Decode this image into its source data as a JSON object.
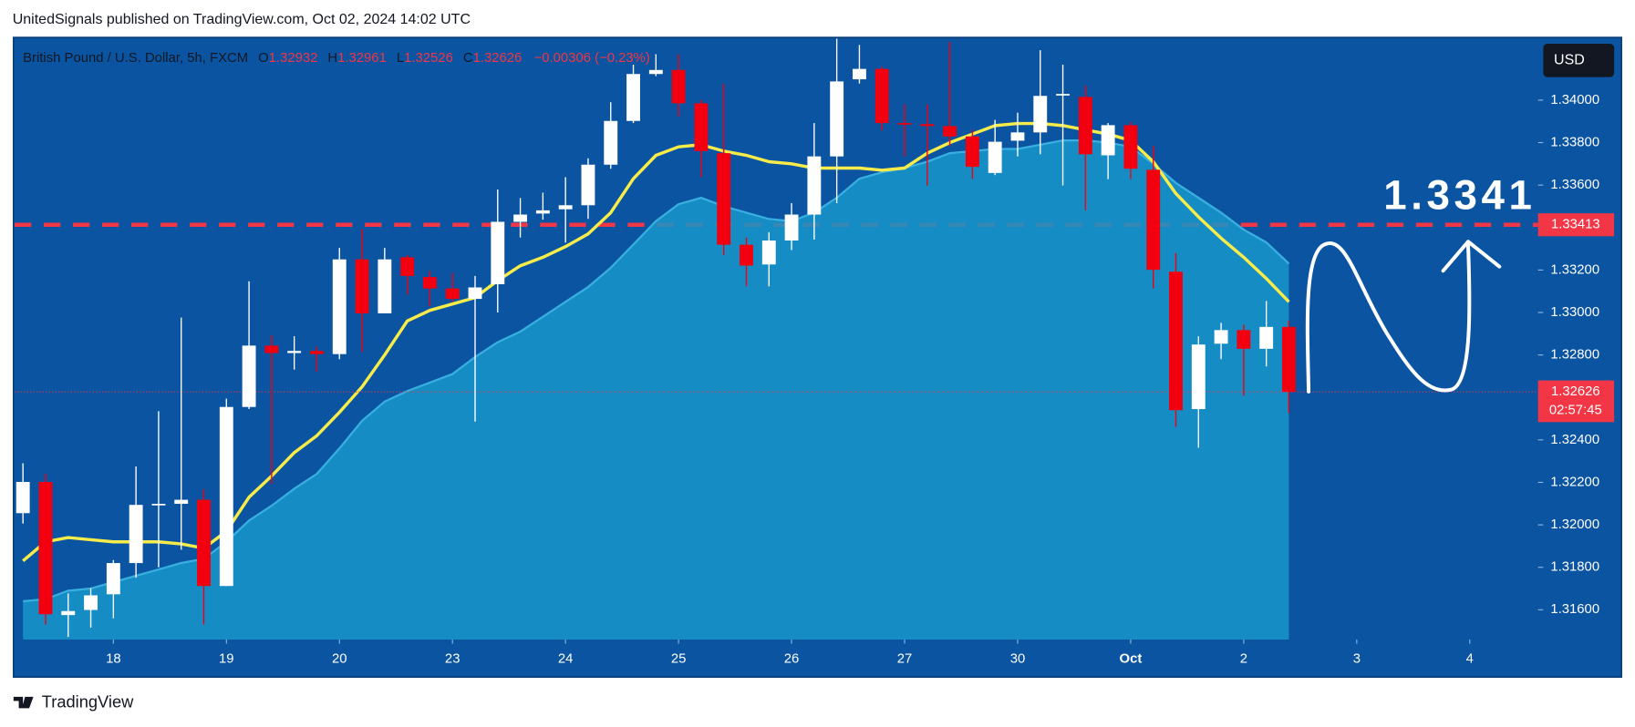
{
  "publish_text": "UnitedSignals published on TradingView.com, Oct 02, 2024 14:02 UTC",
  "footer": "TradingView",
  "chart_data": {
    "type": "candlestick",
    "title": "British Pound / U.S. Dollar, 5h, FXCM",
    "ohlc_labels": [
      "O",
      "H",
      "L",
      "C"
    ],
    "change": "−0.00306 (−0.23%)",
    "currency": "USD",
    "countdown": "02:57:45",
    "annotation": "1.3341",
    "up_color": "#ffffff",
    "down_color": "#f2000f",
    "open": [
      1.32055,
      1.32202,
      1.31575,
      1.31599,
      1.31673,
      1.3182,
      1.32094,
      1.32099,
      1.32118,
      1.31712,
      1.32555,
      1.32844,
      1.32809,
      1.32819,
      1.32804,
      1.3325,
      1.32996,
      1.3326,
      1.33167,
      1.33113,
      1.33064,
      1.33133,
      1.33427,
      1.33466,
      1.33486,
      1.33505,
      1.33696,
      1.33902,
      1.34123,
      1.34142,
      1.33985,
      1.3375,
      1.33319,
      1.33226,
      1.33339,
      1.33461,
      1.33735,
      1.34098,
      1.34147,
      1.33892,
      1.33887,
      1.33878,
      1.33829,
      1.33657,
      1.33809,
      1.33848,
      1.34025,
      1.34015,
      1.3374,
      1.33882,
      1.33672,
      1.33192,
      1.32545,
      1.32853,
      1.32917,
      1.32829,
      1.32932
    ],
    "high": [
      1.3229,
      1.32241,
      1.31677,
      1.31702,
      1.31834,
      1.32275,
      1.32535,
      1.32976,
      1.32167,
      1.32594,
      1.33147,
      1.32893,
      1.32888,
      1.32839,
      1.33304,
      1.33392,
      1.33304,
      1.3327,
      1.33196,
      1.33187,
      1.33172,
      1.33579,
      1.33539,
      1.33564,
      1.33637,
      1.33726,
      1.3399,
      1.34167,
      1.34216,
      1.34216,
      1.34,
      1.34078,
      1.33353,
      1.33378,
      1.33515,
      1.33892,
      1.34289,
      1.3426,
      1.34157,
      1.3398,
      1.3398,
      1.34274,
      1.33858,
      1.33907,
      1.33941,
      1.34235,
      1.34167,
      1.34069,
      1.33892,
      1.33897,
      1.33784,
      1.3328,
      1.32888,
      1.32951,
      1.32942,
      1.33054,
      1.32961
    ],
    "low": [
      1.32006,
      1.3153,
      1.31472,
      1.31516,
      1.3156,
      1.31751,
      1.318,
      1.31883,
      1.3153,
      1.31712,
      1.32545,
      1.32192,
      1.32731,
      1.32721,
      1.3278,
      1.32814,
      1.32996,
      1.33084,
      1.3303,
      1.33049,
      1.32486,
      1.33,
      1.33353,
      1.33437,
      1.33329,
      1.33441,
      1.33677,
      1.33892,
      1.34113,
      1.33922,
      1.33637,
      1.3327,
      1.33123,
      1.33123,
      1.33294,
      1.33343,
      1.33515,
      1.34078,
      1.33858,
      1.33735,
      1.33598,
      1.33784,
      1.33628,
      1.33647,
      1.33735,
      1.33745,
      1.33598,
      1.33481,
      1.33628,
      1.33628,
      1.33113,
      1.32461,
      1.32363,
      1.3278,
      1.32608,
      1.32746,
      1.32526
    ],
    "close": [
      1.32202,
      1.31579,
      1.31594,
      1.31668,
      1.3182,
      1.32094,
      1.32099,
      1.32118,
      1.31712,
      1.32555,
      1.32844,
      1.32809,
      1.32819,
      1.32804,
      1.3325,
      1.32996,
      1.3325,
      1.33172,
      1.33113,
      1.33064,
      1.33118,
      1.33427,
      1.33461,
      1.33481,
      1.33505,
      1.33696,
      1.33902,
      1.34123,
      1.34142,
      1.33985,
      1.3376,
      1.33319,
      1.33221,
      1.33339,
      1.33461,
      1.33735,
      1.34088,
      1.34147,
      1.33892,
      1.33887,
      1.33878,
      1.33829,
      1.33686,
      1.33804,
      1.33848,
      1.3402,
      1.34029,
      1.33745,
      1.33882,
      1.33677,
      1.33201,
      1.3254,
      1.32849,
      1.32917,
      1.32829,
      1.32932,
      1.32626
    ],
    "overlays": [
      {
        "type": "area",
        "color": "#1797c9",
        "edge_color": "#39afe0",
        "values": [
          1.3164,
          1.3165,
          1.3169,
          1.317,
          1.3173,
          1.3176,
          1.3179,
          1.3182,
          1.3184,
          1.3192,
          1.3202,
          1.3209,
          1.3217,
          1.3224,
          1.3236,
          1.3249,
          1.3258,
          1.3263,
          1.3267,
          1.3271,
          1.3279,
          1.3286,
          1.3291,
          1.3298,
          1.3305,
          1.3312,
          1.3321,
          1.3332,
          1.3343,
          1.3351,
          1.3354,
          1.335,
          1.3347,
          1.3344,
          1.3343,
          1.3347,
          1.3354,
          1.3363,
          1.3366,
          1.3368,
          1.3371,
          1.3375,
          1.3376,
          1.3377,
          1.3377,
          1.3379,
          1.3381,
          1.3381,
          1.338,
          1.3378,
          1.337,
          1.3361,
          1.3354,
          1.3347,
          1.3339,
          1.3333,
          1.3323
        ]
      },
      {
        "type": "line",
        "color": "#f7ec4a",
        "values": [
          1.3183,
          1.3192,
          1.3194,
          1.3193,
          1.3192,
          1.3192,
          1.3192,
          1.3191,
          1.3189,
          1.3197,
          1.3213,
          1.3223,
          1.3234,
          1.3242,
          1.3253,
          1.3265,
          1.328,
          1.3296,
          1.3301,
          1.3304,
          1.3307,
          1.3315,
          1.3322,
          1.3326,
          1.3331,
          1.3337,
          1.3347,
          1.3363,
          1.3374,
          1.3378,
          1.3379,
          1.3376,
          1.3374,
          1.3371,
          1.337,
          1.3368,
          1.3368,
          1.3368,
          1.3367,
          1.3368,
          1.3375,
          1.338,
          1.3384,
          1.3388,
          1.3389,
          1.3389,
          1.3388,
          1.3386,
          1.3384,
          1.3381,
          1.3371,
          1.3356,
          1.3345,
          1.3335,
          1.3326,
          1.3316,
          1.3305
        ]
      }
    ],
    "hline": {
      "value": 1.33413,
      "color": "#f23645"
    },
    "ylim": [
      1.3146,
      1.3429
    ],
    "yticks": [
      {
        "value": 1.316,
        "label": "1.31600"
      },
      {
        "value": 1.318,
        "label": "1.31800"
      },
      {
        "value": 1.32,
        "label": "1.32000"
      },
      {
        "value": 1.322,
        "label": "1.32200"
      },
      {
        "value": 1.324,
        "label": "1.32400"
      },
      {
        "value": 1.326,
        "label": "1.32600"
      },
      {
        "value": 1.328,
        "label": "1.32800"
      },
      {
        "value": 1.33,
        "label": "1.33000"
      },
      {
        "value": 1.332,
        "label": "1.33200"
      },
      {
        "value": 1.334,
        "label": "1.33400"
      },
      {
        "value": 1.336,
        "label": "1.33600"
      },
      {
        "value": 1.338,
        "label": "1.33800"
      },
      {
        "value": 1.34,
        "label": "1.34000"
      }
    ],
    "xlim": [
      -0.37,
      67.02
    ],
    "xticks": [
      {
        "value": 4,
        "label": "18"
      },
      {
        "value": 9,
        "label": "19"
      },
      {
        "value": 14,
        "label": "20"
      },
      {
        "value": 19,
        "label": "23"
      },
      {
        "value": 24,
        "label": "24"
      },
      {
        "value": 29,
        "label": "25"
      },
      {
        "value": 34,
        "label": "26"
      },
      {
        "value": 39,
        "label": "27"
      },
      {
        "value": 44,
        "label": "30"
      },
      {
        "value": 49,
        "label": "Oct"
      },
      {
        "value": 54,
        "label": "2"
      },
      {
        "value": 59,
        "label": "3"
      },
      {
        "value": 64,
        "label": "4"
      }
    ],
    "grid": false
  }
}
